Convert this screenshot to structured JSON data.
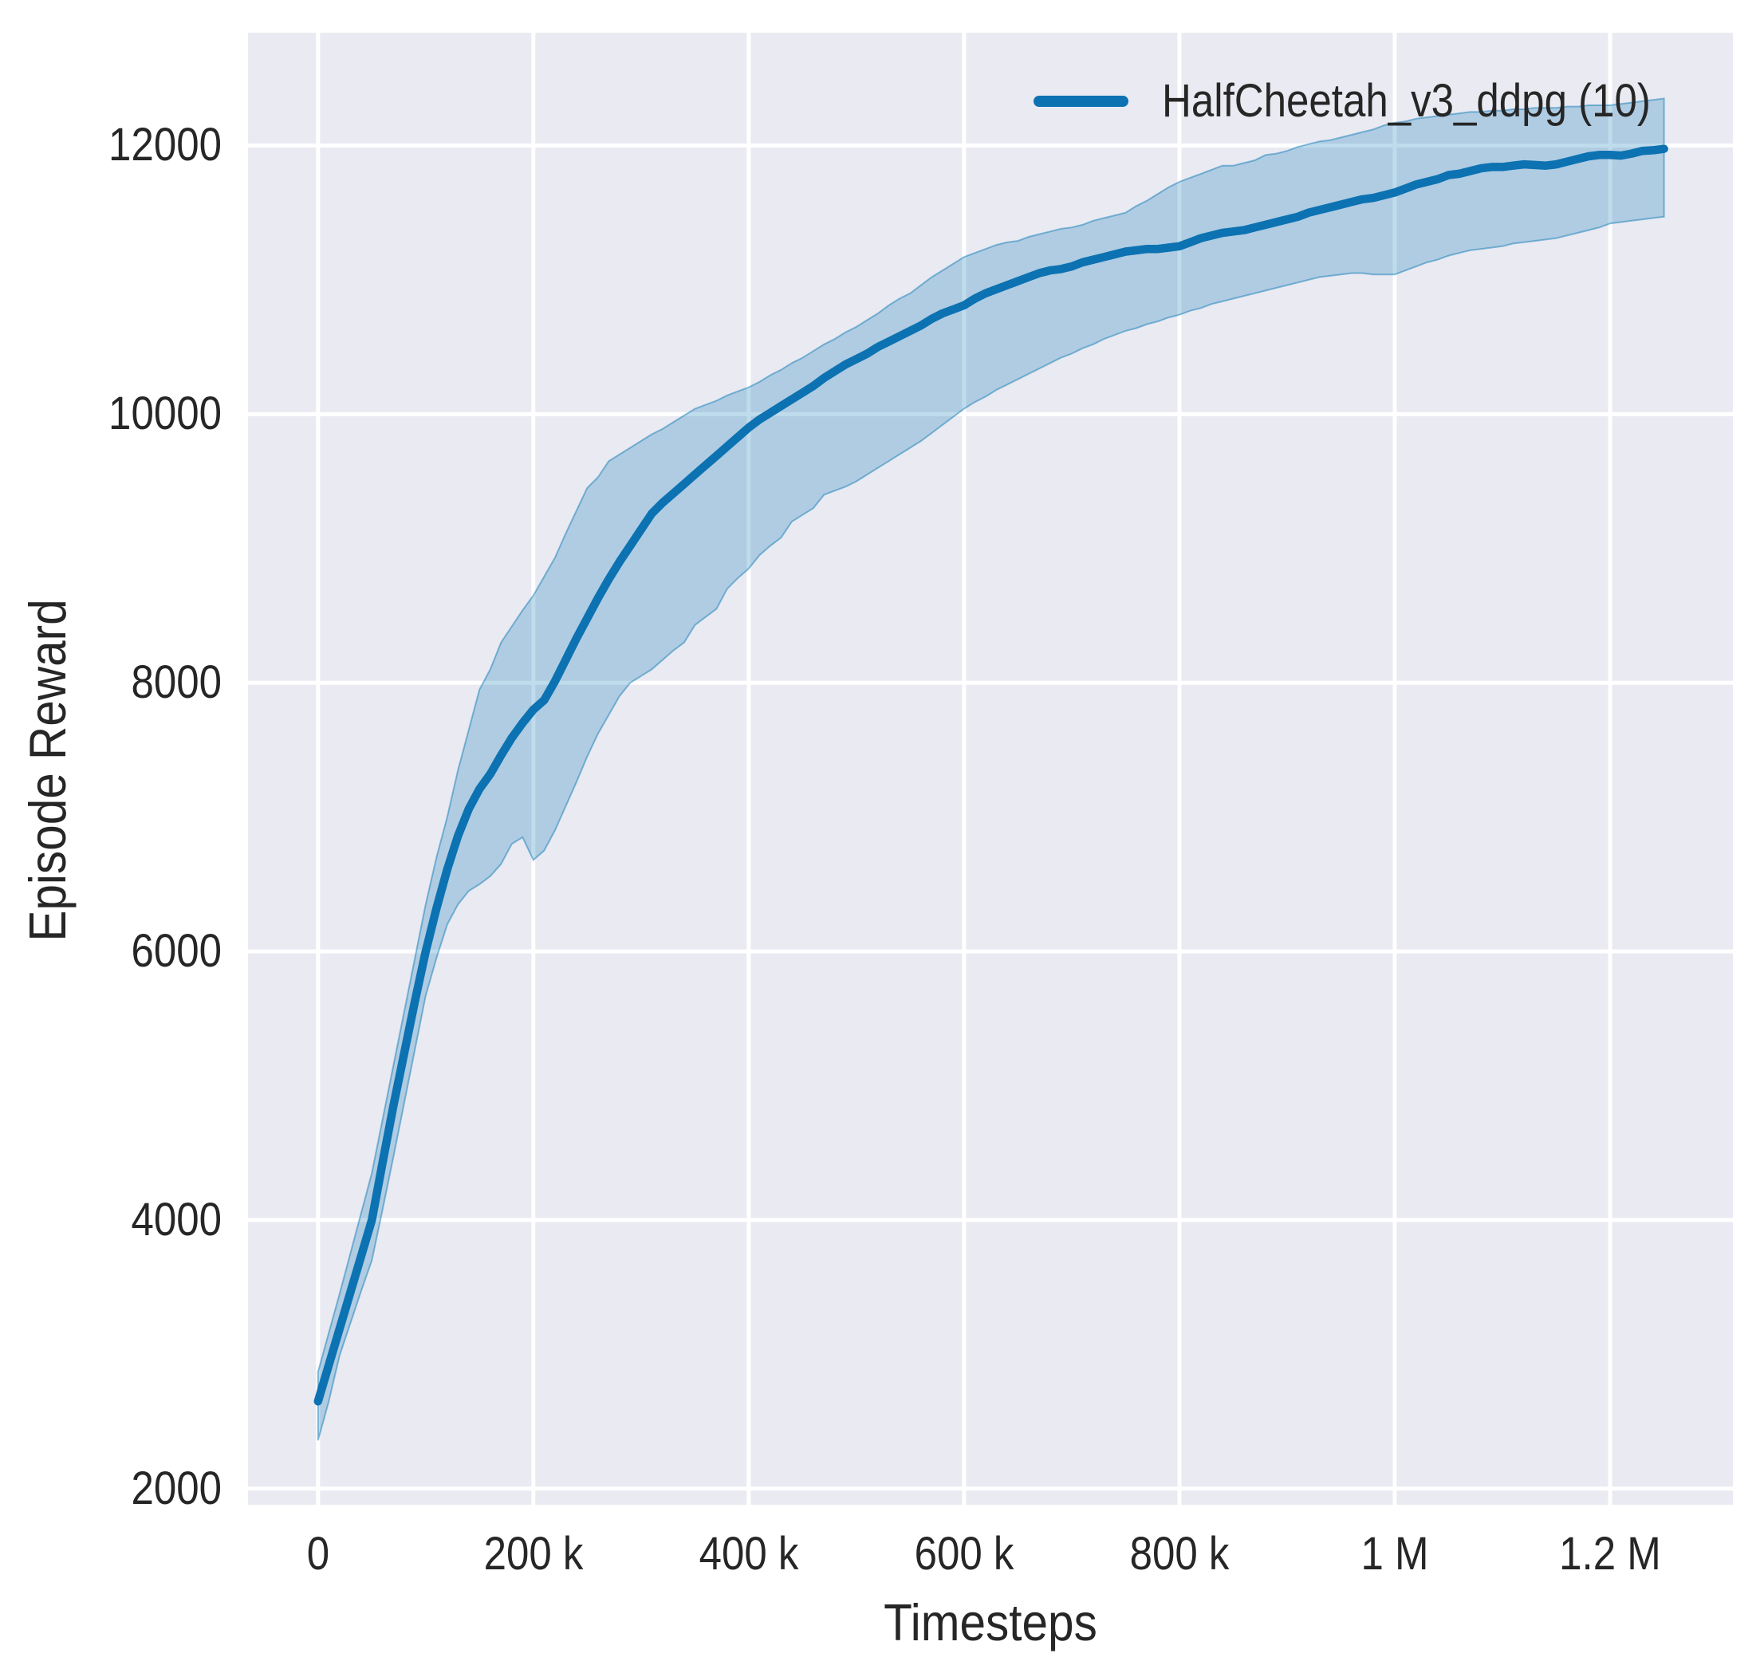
{
  "figure": {
    "kind": "matplotlib-seaborn line plot",
    "plot_bg": "#eaeaf2",
    "figure_bg": "#ffffff",
    "grid_color": "#ffffff",
    "text_color": "#262626"
  },
  "legend": {
    "label": "HalfCheetah_v3_ddpg (10)",
    "color": "#0c72b2",
    "position": "upper right"
  },
  "chart_data": {
    "type": "line",
    "title": "",
    "xlabel": "Timesteps",
    "ylabel": "Episode Reward",
    "grid": true,
    "legend_position": "upper right",
    "x_unit": "thousand timesteps",
    "xlim_k": [
      -65,
      1314
    ],
    "ylim": [
      1880,
      12840
    ],
    "xticks": [
      {
        "v": 0,
        "label": "0"
      },
      {
        "v": 200,
        "label": "200 k"
      },
      {
        "v": 400,
        "label": "400 k"
      },
      {
        "v": 600,
        "label": "600 k"
      },
      {
        "v": 800,
        "label": "800 k"
      },
      {
        "v": 1000,
        "label": "1 M"
      },
      {
        "v": 1200,
        "label": "1.2 M"
      }
    ],
    "yticks": [
      {
        "v": 2000,
        "label": "2000"
      },
      {
        "v": 4000,
        "label": "4000"
      },
      {
        "v": 6000,
        "label": "6000"
      },
      {
        "v": 8000,
        "label": "8000"
      },
      {
        "v": 10000,
        "label": "10000"
      },
      {
        "v": 12000,
        "label": "12000"
      }
    ],
    "series": [
      {
        "name": "HalfCheetah_v3_ddpg (10)",
        "line_color": "#0c72b2",
        "band_color": "#0173b2",
        "band_alpha": 0.25,
        "x_k": [
          0,
          10,
          20,
          30,
          40,
          50,
          60,
          70,
          80,
          90,
          100,
          110,
          120,
          130,
          140,
          150,
          160,
          170,
          180,
          190,
          200,
          210,
          220,
          230,
          240,
          250,
          260,
          270,
          280,
          290,
          300,
          310,
          320,
          330,
          340,
          350,
          360,
          370,
          380,
          390,
          400,
          410,
          420,
          430,
          440,
          450,
          460,
          470,
          480,
          490,
          500,
          510,
          520,
          530,
          540,
          550,
          560,
          570,
          580,
          590,
          600,
          610,
          620,
          630,
          640,
          650,
          660,
          670,
          680,
          690,
          700,
          710,
          720,
          730,
          740,
          750,
          760,
          770,
          780,
          790,
          800,
          810,
          820,
          830,
          840,
          850,
          860,
          870,
          880,
          890,
          900,
          910,
          920,
          930,
          940,
          950,
          960,
          970,
          980,
          990,
          1000,
          1010,
          1020,
          1030,
          1040,
          1050,
          1060,
          1070,
          1080,
          1090,
          1100,
          1110,
          1120,
          1130,
          1140,
          1150,
          1160,
          1170,
          1180,
          1190,
          1200,
          1210,
          1220,
          1230,
          1240,
          1250
        ],
        "mean": [
          2650,
          2920,
          3190,
          3460,
          3730,
          4000,
          4430,
          4850,
          5240,
          5630,
          6000,
          6320,
          6610,
          6860,
          7060,
          7210,
          7320,
          7460,
          7590,
          7700,
          7800,
          7870,
          8010,
          8170,
          8330,
          8480,
          8630,
          8770,
          8900,
          9020,
          9140,
          9260,
          9340,
          9410,
          9480,
          9550,
          9620,
          9690,
          9760,
          9830,
          9900,
          9960,
          10010,
          10060,
          10110,
          10160,
          10210,
          10270,
          10320,
          10370,
          10410,
          10450,
          10500,
          10540,
          10580,
          10620,
          10660,
          10710,
          10750,
          10780,
          10810,
          10860,
          10900,
          10930,
          10960,
          10990,
          11020,
          11050,
          11070,
          11080,
          11100,
          11130,
          11150,
          11170,
          11190,
          11210,
          11220,
          11230,
          11230,
          11240,
          11250,
          11280,
          11310,
          11330,
          11350,
          11360,
          11370,
          11390,
          11410,
          11430,
          11450,
          11470,
          11500,
          11520,
          11540,
          11560,
          11580,
          11600,
          11610,
          11630,
          11650,
          11680,
          11710,
          11730,
          11750,
          11780,
          11790,
          11810,
          11830,
          11840,
          11840,
          11850,
          11860,
          11855,
          11850,
          11860,
          11880,
          11900,
          11920,
          11930,
          11930,
          11925,
          11940,
          11960,
          11965,
          11975
        ],
        "band_low": [
          2360,
          2650,
          2990,
          3230,
          3470,
          3700,
          4080,
          4470,
          4870,
          5270,
          5670,
          5950,
          6200,
          6350,
          6450,
          6500,
          6560,
          6650,
          6800,
          6850,
          6680,
          6750,
          6900,
          7080,
          7260,
          7450,
          7620,
          7760,
          7900,
          8000,
          8050,
          8100,
          8170,
          8240,
          8300,
          8430,
          8490,
          8550,
          8700,
          8780,
          8850,
          8950,
          9020,
          9080,
          9200,
          9250,
          9300,
          9400,
          9430,
          9460,
          9500,
          9550,
          9600,
          9650,
          9700,
          9750,
          9800,
          9860,
          9920,
          9980,
          10040,
          10090,
          10130,
          10180,
          10220,
          10260,
          10300,
          10340,
          10380,
          10420,
          10450,
          10490,
          10520,
          10560,
          10590,
          10620,
          10640,
          10670,
          10690,
          10720,
          10740,
          10770,
          10790,
          10820,
          10840,
          10860,
          10880,
          10900,
          10920,
          10940,
          10960,
          10980,
          11000,
          11020,
          11030,
          11040,
          11050,
          11050,
          11040,
          11040,
          11040,
          11070,
          11100,
          11130,
          11150,
          11180,
          11200,
          11220,
          11230,
          11240,
          11250,
          11270,
          11280,
          11290,
          11300,
          11310,
          11330,
          11350,
          11370,
          11390,
          11420,
          11430,
          11440,
          11450,
          11460,
          11470
        ],
        "band_high": [
          2870,
          3160,
          3450,
          3750,
          4050,
          4350,
          4750,
          5150,
          5550,
          5950,
          6350,
          6700,
          7000,
          7350,
          7650,
          7950,
          8100,
          8300,
          8420,
          8540,
          8650,
          8790,
          8930,
          9110,
          9280,
          9450,
          9530,
          9650,
          9700,
          9750,
          9800,
          9850,
          9890,
          9940,
          9990,
          10040,
          10070,
          10100,
          10140,
          10170,
          10200,
          10240,
          10290,
          10330,
          10380,
          10420,
          10470,
          10520,
          10560,
          10610,
          10650,
          10700,
          10750,
          10810,
          10860,
          10900,
          10960,
          11020,
          11070,
          11120,
          11170,
          11200,
          11230,
          11260,
          11280,
          11290,
          11320,
          11340,
          11360,
          11380,
          11390,
          11410,
          11440,
          11460,
          11480,
          11500,
          11550,
          11590,
          11640,
          11690,
          11730,
          11760,
          11790,
          11820,
          11850,
          11850,
          11870,
          11890,
          11930,
          11940,
          11960,
          11990,
          12010,
          12030,
          12040,
          12060,
          12080,
          12100,
          12120,
          12150,
          12170,
          12180,
          12200,
          12210,
          12220,
          12230,
          12240,
          12250,
          12250,
          12260,
          12260,
          12270,
          12270,
          12280,
          12280,
          12280,
          12290,
          12290,
          12300,
          12300,
          12300,
          12310,
          12320,
          12330,
          12340,
          12350
        ]
      }
    ]
  }
}
